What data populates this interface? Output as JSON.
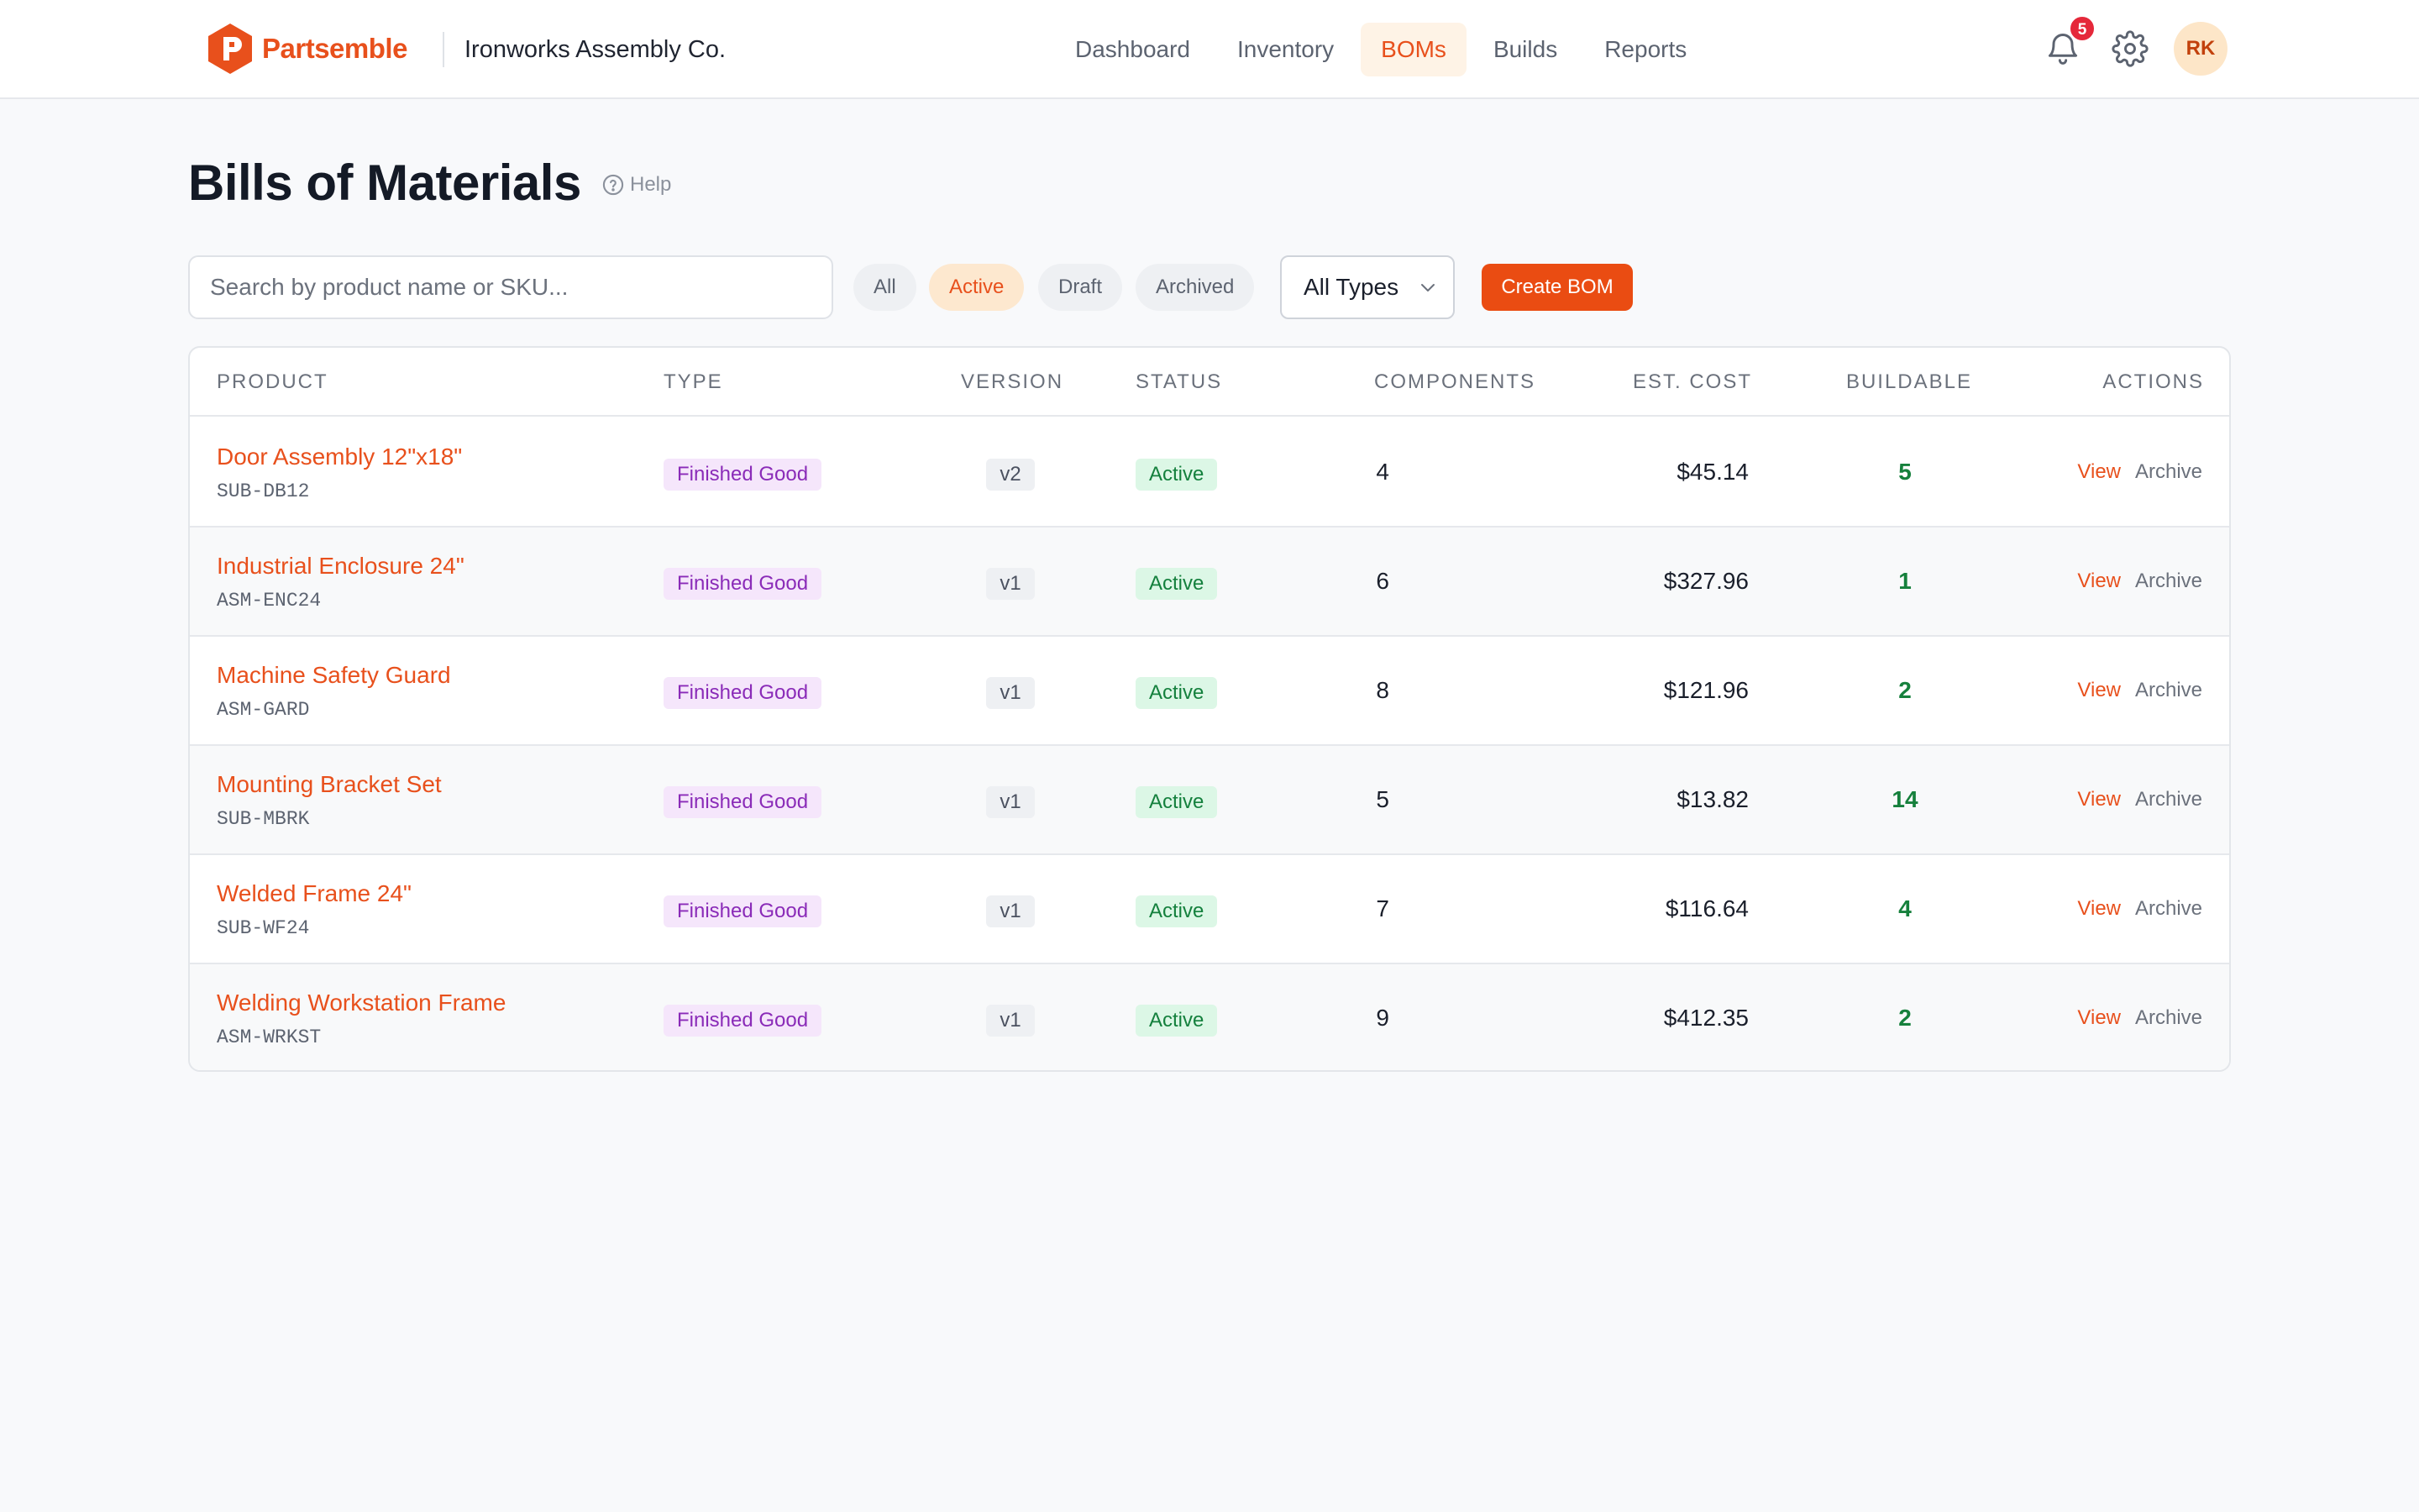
{
  "app": {
    "brand": "Partsemble",
    "company": "Ironworks Assembly Co.",
    "accent_color": "#e8501c"
  },
  "nav": {
    "links": [
      {
        "label": "Dashboard",
        "active": false
      },
      {
        "label": "Inventory",
        "active": false
      },
      {
        "label": "BOMs",
        "active": true
      },
      {
        "label": "Builds",
        "active": false
      },
      {
        "label": "Reports",
        "active": false
      }
    ],
    "notifications_count": "5",
    "avatar_initials": "RK",
    "icons": [
      "bell-icon",
      "gear-icon"
    ]
  },
  "page": {
    "title": "Bills of Materials",
    "help_label": "Help"
  },
  "toolbar": {
    "search_placeholder": "Search by product name or SKU...",
    "filters": [
      {
        "label": "All",
        "active": false
      },
      {
        "label": "Active",
        "active": true
      },
      {
        "label": "Draft",
        "active": false
      },
      {
        "label": "Archived",
        "active": false
      }
    ],
    "type_select_value": "All Types",
    "create_label": "Create BOM"
  },
  "table": {
    "headers": {
      "product": "PRODUCT",
      "type": "TYPE",
      "version": "VERSION",
      "status": "STATUS",
      "components": "COMPONENTS",
      "cost": "EST. COST",
      "buildable": "BUILDABLE",
      "actions": "ACTIONS"
    },
    "action_labels": {
      "view": "View",
      "archive": "Archive"
    },
    "rows": [
      {
        "name": "Door Assembly 12\"x18\"",
        "sku": "SUB-DB12",
        "type": "Finished Good",
        "version": "v2",
        "status": "Active",
        "components": "4",
        "cost": "$45.14",
        "buildable": "5"
      },
      {
        "name": "Industrial Enclosure 24\"",
        "sku": "ASM-ENC24",
        "type": "Finished Good",
        "version": "v1",
        "status": "Active",
        "components": "6",
        "cost": "$327.96",
        "buildable": "1"
      },
      {
        "name": "Machine Safety Guard",
        "sku": "ASM-GARD",
        "type": "Finished Good",
        "version": "v1",
        "status": "Active",
        "components": "8",
        "cost": "$121.96",
        "buildable": "2"
      },
      {
        "name": "Mounting Bracket Set",
        "sku": "SUB-MBRK",
        "type": "Finished Good",
        "version": "v1",
        "status": "Active",
        "components": "5",
        "cost": "$13.82",
        "buildable": "14"
      },
      {
        "name": "Welded Frame 24\"",
        "sku": "SUB-WF24",
        "type": "Finished Good",
        "version": "v1",
        "status": "Active",
        "components": "7",
        "cost": "$116.64",
        "buildable": "4"
      },
      {
        "name": "Welding Workstation Frame",
        "sku": "ASM-WRKST",
        "type": "Finished Good",
        "version": "v1",
        "status": "Active",
        "components": "9",
        "cost": "$412.35",
        "buildable": "2"
      }
    ]
  }
}
